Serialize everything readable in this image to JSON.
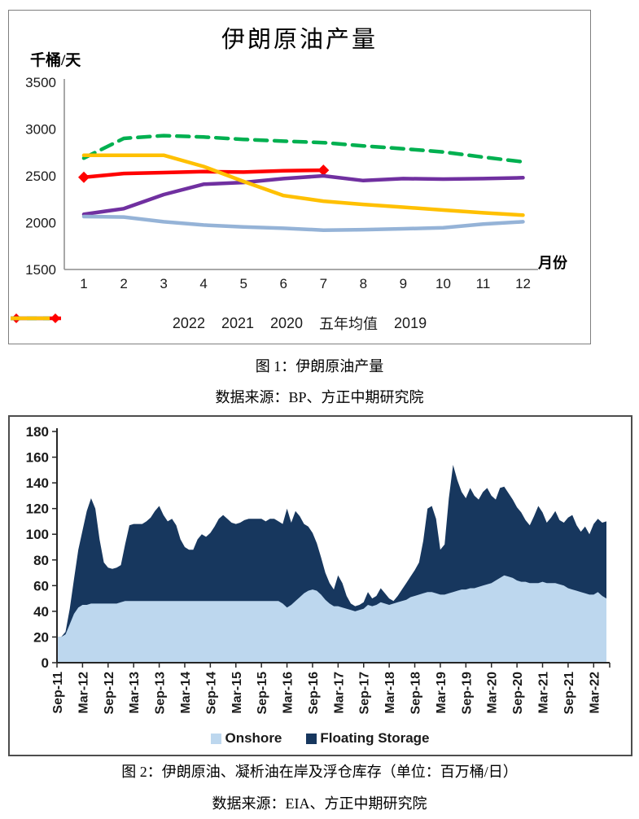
{
  "figure1": {
    "caption": "图 1：伊朗原油产量",
    "source": "数据来源：BP、方正中期研究院"
  },
  "figure2": {
    "caption": "图 2：伊朗原油、凝析油在岸及浮仓库存（单位：百万桶/日）",
    "source": "数据来源：EIA、方正中期研究院"
  },
  "chart_data": [
    {
      "type": "line",
      "title": "伊朗原油产量",
      "y_unit_label": "千桶/天",
      "x_axis_label": "月份",
      "ylim": [
        1500,
        3500
      ],
      "yticks": [
        3500,
        3000,
        2500,
        2000,
        1500
      ],
      "x": [
        1,
        2,
        3,
        4,
        5,
        6,
        7,
        8,
        9,
        10,
        11,
        12
      ],
      "grid": false,
      "legend_position": "bottom",
      "series": [
        {
          "name": "2022",
          "slug": "2022",
          "color": "#FF0000",
          "style": "solid",
          "marker": "diamond-ends",
          "values": [
            2485,
            2525,
            2535,
            2545,
            2540,
            2555,
            2560,
            null,
            null,
            null,
            null,
            null
          ]
        },
        {
          "name": "2021",
          "slug": "2021",
          "color": "#7030A0",
          "style": "solid",
          "marker": "none",
          "values": [
            2090,
            2150,
            2300,
            2410,
            2430,
            2470,
            2500,
            2450,
            2470,
            2465,
            2470,
            2480
          ]
        },
        {
          "name": "2020",
          "slug": "2020",
          "color": "#95B3D7",
          "style": "solid",
          "marker": "none",
          "values": [
            2065,
            2060,
            2010,
            1975,
            1955,
            1940,
            1920,
            1925,
            1935,
            1945,
            1985,
            2010
          ]
        },
        {
          "name": "五年均值",
          "slug": "five-year-avg",
          "color": "#00B050",
          "style": "dashed",
          "marker": "none",
          "values": [
            2690,
            2900,
            2930,
            2915,
            2890,
            2870,
            2855,
            2820,
            2790,
            2755,
            2700,
            2650
          ]
        },
        {
          "name": "2019",
          "slug": "2019",
          "color": "#FFC000",
          "style": "solid",
          "marker": "none",
          "values": [
            2720,
            2720,
            2720,
            2600,
            2440,
            2290,
            2230,
            2195,
            2165,
            2135,
            2105,
            2080
          ]
        }
      ]
    },
    {
      "type": "area",
      "stacked": true,
      "ylim": [
        0,
        180
      ],
      "yticks": [
        180,
        160,
        140,
        120,
        100,
        80,
        60,
        40,
        20,
        0
      ],
      "x_frequency": "monthly",
      "x_start": "Sep-11",
      "x_end": "Jun-22",
      "x_tick_labels": [
        "Sep-11",
        "Mar-12",
        "Sep-12",
        "Mar-13",
        "Sep-13",
        "Mar-14",
        "Sep-14",
        "Mar-15",
        "Sep-15",
        "Mar-16",
        "Sep-16",
        "Mar-17",
        "Sep-17",
        "Mar-18",
        "Sep-18",
        "Mar-19",
        "Sep-19",
        "Mar-20",
        "Sep-20",
        "Mar-21",
        "Sep-21",
        "Mar-22"
      ],
      "legend_position": "bottom",
      "series": [
        {
          "name": "Onshore",
          "slug": "onshore",
          "color": "#BDD7EE",
          "values": [
            20,
            20,
            22,
            30,
            38,
            43,
            45,
            45,
            46,
            46,
            46,
            46,
            46,
            46,
            46,
            47,
            48,
            48,
            48,
            48,
            48,
            48,
            48,
            48,
            48,
            48,
            48,
            48,
            48,
            48,
            48,
            48,
            48,
            48,
            48,
            48,
            48,
            48,
            48,
            48,
            48,
            48,
            48,
            48,
            48,
            48,
            48,
            48,
            48,
            48,
            48,
            48,
            48,
            46,
            43,
            45,
            48,
            51,
            54,
            56,
            57,
            56,
            53,
            49,
            46,
            44,
            44,
            43,
            42,
            41,
            40,
            41,
            42,
            45,
            44,
            45,
            47,
            46,
            45,
            46,
            47,
            48,
            49,
            51,
            52,
            53,
            54,
            55,
            55,
            54,
            53,
            53,
            54,
            55,
            56,
            57,
            57,
            58,
            58,
            59,
            60,
            61,
            62,
            64,
            66,
            68,
            67,
            66,
            64,
            63,
            63,
            62,
            62,
            62,
            63,
            62,
            62,
            62,
            61,
            60,
            58,
            57,
            56,
            55,
            54,
            53,
            53,
            55,
            52,
            50
          ]
        },
        {
          "name": "Floating Storage",
          "slug": "floating-storage",
          "color": "#17375E",
          "values": [
            0,
            0,
            2,
            12,
            27,
            45,
            58,
            73,
            82,
            74,
            50,
            32,
            28,
            27,
            28,
            29,
            44,
            59,
            60,
            60,
            60,
            62,
            65,
            70,
            74,
            67,
            62,
            64,
            59,
            48,
            42,
            40,
            40,
            48,
            52,
            50,
            53,
            58,
            64,
            67,
            64,
            61,
            60,
            61,
            63,
            64,
            64,
            64,
            64,
            62,
            64,
            64,
            62,
            62,
            77,
            64,
            70,
            63,
            54,
            50,
            44,
            37,
            29,
            21,
            16,
            13,
            24,
            19,
            10,
            5,
            4,
            4,
            5,
            10,
            6,
            7,
            11,
            8,
            5,
            2,
            5,
            9,
            13,
            16,
            20,
            25,
            41,
            65,
            67,
            58,
            35,
            39,
            74,
            99,
            86,
            76,
            71,
            78,
            72,
            68,
            73,
            75,
            68,
            63,
            70,
            69,
            65,
            61,
            57,
            54,
            48,
            45,
            52,
            60,
            54,
            47,
            51,
            56,
            50,
            49,
            55,
            58,
            51,
            47,
            52,
            47,
            55,
            57,
            57,
            60
          ]
        }
      ]
    }
  ]
}
